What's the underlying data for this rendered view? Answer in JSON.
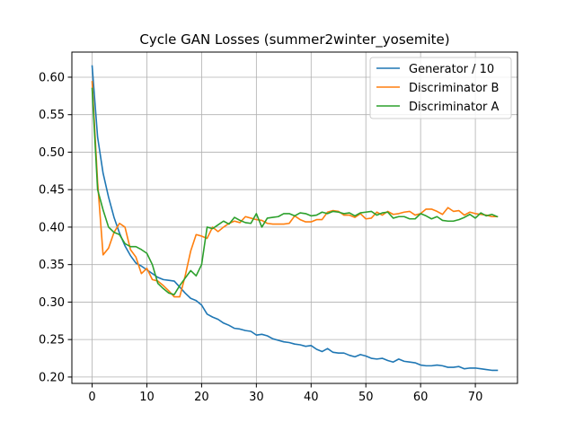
{
  "chart_data": {
    "type": "line",
    "title": "Cycle GAN Losses (summer2winter_yosemite)",
    "xlabel": "",
    "ylabel": "",
    "xlim": [
      -3.7,
      77.7
    ],
    "ylim": [
      0.1915,
      0.6335
    ],
    "xticks": [
      0,
      10,
      20,
      30,
      40,
      50,
      60,
      70
    ],
    "yticks": [
      0.2,
      0.25,
      0.3,
      0.35,
      0.4,
      0.45,
      0.5,
      0.55,
      0.6
    ],
    "ytick_labels": [
      "0.20",
      "0.25",
      "0.30",
      "0.35",
      "0.40",
      "0.45",
      "0.50",
      "0.55",
      "0.60"
    ],
    "grid": true,
    "legend_position": "top-right",
    "series": [
      {
        "name": "Generator / 10",
        "color": "#1f77b4",
        "values": [
          0.615,
          0.52,
          0.472,
          0.44,
          0.413,
          0.392,
          0.375,
          0.362,
          0.352,
          0.348,
          0.343,
          0.338,
          0.333,
          0.33,
          0.329,
          0.328,
          0.32,
          0.312,
          0.305,
          0.302,
          0.296,
          0.284,
          0.28,
          0.277,
          0.272,
          0.269,
          0.265,
          0.264,
          0.262,
          0.261,
          0.256,
          0.257,
          0.255,
          0.251,
          0.249,
          0.247,
          0.246,
          0.244,
          0.243,
          0.241,
          0.242,
          0.237,
          0.234,
          0.238,
          0.233,
          0.232,
          0.232,
          0.229,
          0.227,
          0.23,
          0.228,
          0.225,
          0.224,
          0.225,
          0.222,
          0.22,
          0.224,
          0.221,
          0.22,
          0.219,
          0.216,
          0.215,
          0.215,
          0.216,
          0.215,
          0.213,
          0.213,
          0.214,
          0.211,
          0.212,
          0.212,
          0.211,
          0.21,
          0.209,
          0.209
        ]
      },
      {
        "name": "Discriminator B",
        "color": "#ff7f0e",
        "values": [
          0.594,
          0.46,
          0.363,
          0.372,
          0.393,
          0.405,
          0.4,
          0.37,
          0.36,
          0.338,
          0.345,
          0.33,
          0.328,
          0.322,
          0.315,
          0.307,
          0.307,
          0.335,
          0.368,
          0.39,
          0.388,
          0.385,
          0.4,
          0.394,
          0.4,
          0.405,
          0.408,
          0.406,
          0.414,
          0.412,
          0.41,
          0.409,
          0.405,
          0.404,
          0.404,
          0.404,
          0.405,
          0.415,
          0.41,
          0.407,
          0.407,
          0.41,
          0.41,
          0.42,
          0.422,
          0.421,
          0.416,
          0.416,
          0.413,
          0.418,
          0.411,
          0.412,
          0.42,
          0.416,
          0.421,
          0.417,
          0.418,
          0.42,
          0.421,
          0.416,
          0.418,
          0.424,
          0.424,
          0.421,
          0.417,
          0.426,
          0.421,
          0.422,
          0.416,
          0.42,
          0.418,
          0.417,
          0.416,
          0.414,
          0.414
        ]
      },
      {
        "name": "Discriminator A",
        "color": "#2ca02c",
        "values": [
          0.585,
          0.45,
          0.423,
          0.4,
          0.393,
          0.39,
          0.378,
          0.374,
          0.374,
          0.37,
          0.365,
          0.35,
          0.325,
          0.318,
          0.312,
          0.31,
          0.322,
          0.332,
          0.342,
          0.335,
          0.35,
          0.4,
          0.398,
          0.403,
          0.408,
          0.404,
          0.413,
          0.409,
          0.406,
          0.405,
          0.418,
          0.4,
          0.412,
          0.413,
          0.414,
          0.418,
          0.418,
          0.415,
          0.419,
          0.418,
          0.415,
          0.416,
          0.42,
          0.418,
          0.421,
          0.42,
          0.418,
          0.419,
          0.415,
          0.419,
          0.42,
          0.421,
          0.416,
          0.419,
          0.42,
          0.412,
          0.414,
          0.414,
          0.411,
          0.411,
          0.418,
          0.415,
          0.411,
          0.414,
          0.409,
          0.408,
          0.408,
          0.41,
          0.413,
          0.417,
          0.412,
          0.419,
          0.415,
          0.417,
          0.414
        ]
      }
    ]
  }
}
